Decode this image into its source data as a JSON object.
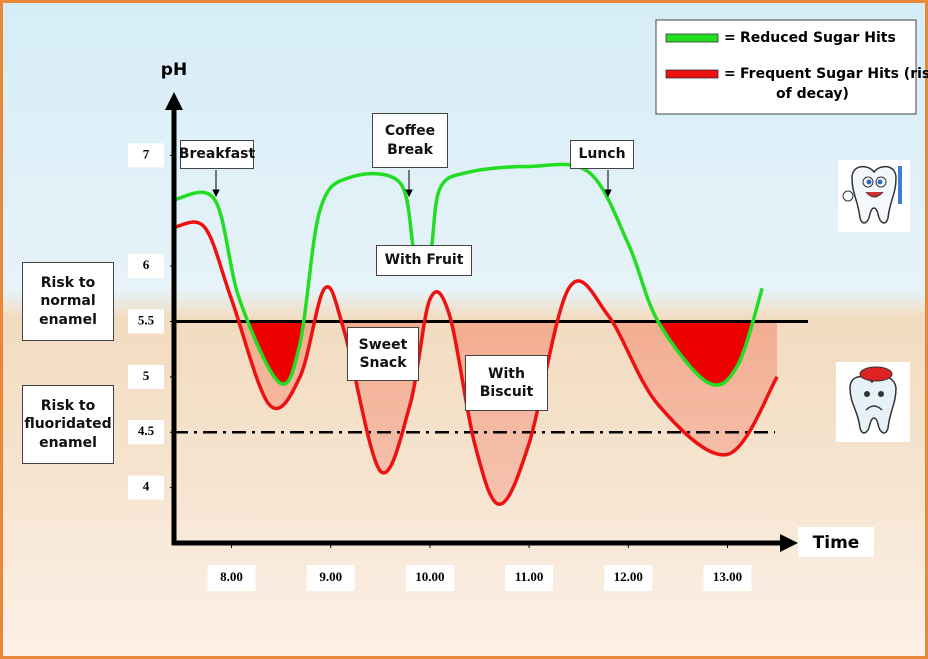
{
  "chart_data": {
    "type": "line",
    "y_label": "pH",
    "x_label": "Time",
    "xlim": [
      7.42,
      13.63
    ],
    "ylim": [
      3.5,
      7.5
    ],
    "xticks": [
      {
        "value": 8,
        "label": "8.00"
      },
      {
        "value": 9,
        "label": "9.00"
      },
      {
        "value": 10,
        "label": "10.00"
      },
      {
        "value": 11,
        "label": "11.00"
      },
      {
        "value": 12,
        "label": "12.00"
      },
      {
        "value": 13,
        "label": "13.00"
      }
    ],
    "yticks": [
      7,
      6,
      5.5,
      5,
      4.5,
      4
    ],
    "legend_separator": "=",
    "legend_position": "top-right",
    "series": [
      {
        "name": "Reduced Sugar Hits",
        "color": "#22dd22",
        "x": [
          7.42,
          7.83,
          8.08,
          8.48,
          8.69,
          8.89,
          9.19,
          9.7,
          9.85,
          10.0,
          10.1,
          10.4,
          11.0,
          11.6,
          12.0,
          12.3,
          12.8,
          13.1,
          13.35
        ],
        "values": [
          6.6,
          6.6,
          5.7,
          4.95,
          5.3,
          6.5,
          6.8,
          6.75,
          6.1,
          6.1,
          6.7,
          6.85,
          6.9,
          6.85,
          6.2,
          5.5,
          4.95,
          5.1,
          5.8
        ]
      },
      {
        "name": "Frequent Sugar Hits (risk of decay)",
        "color": "#ee1111",
        "x": [
          7.42,
          7.73,
          8.0,
          8.38,
          8.69,
          8.94,
          9.14,
          9.5,
          9.8,
          10.0,
          10.2,
          10.45,
          10.7,
          11.0,
          11.4,
          11.8,
          12.3,
          13.0,
          13.5
        ],
        "values": [
          6.35,
          6.35,
          5.7,
          4.75,
          5.0,
          5.8,
          5.4,
          4.15,
          4.75,
          5.7,
          5.55,
          4.4,
          3.85,
          4.4,
          5.8,
          5.55,
          4.75,
          4.3,
          5.0
        ]
      }
    ],
    "reference_lines": [
      {
        "value": 5.5,
        "label": "Risk to normal enamel",
        "style": "solid"
      },
      {
        "value": 4.5,
        "label": "Risk to fluoridated enamel",
        "style": "dashdot"
      }
    ],
    "annotations": [
      "Breakfast",
      "Coffee Break",
      "Lunch",
      "With Fruit",
      "Sweet Snack",
      "With Biscuit"
    ]
  }
}
